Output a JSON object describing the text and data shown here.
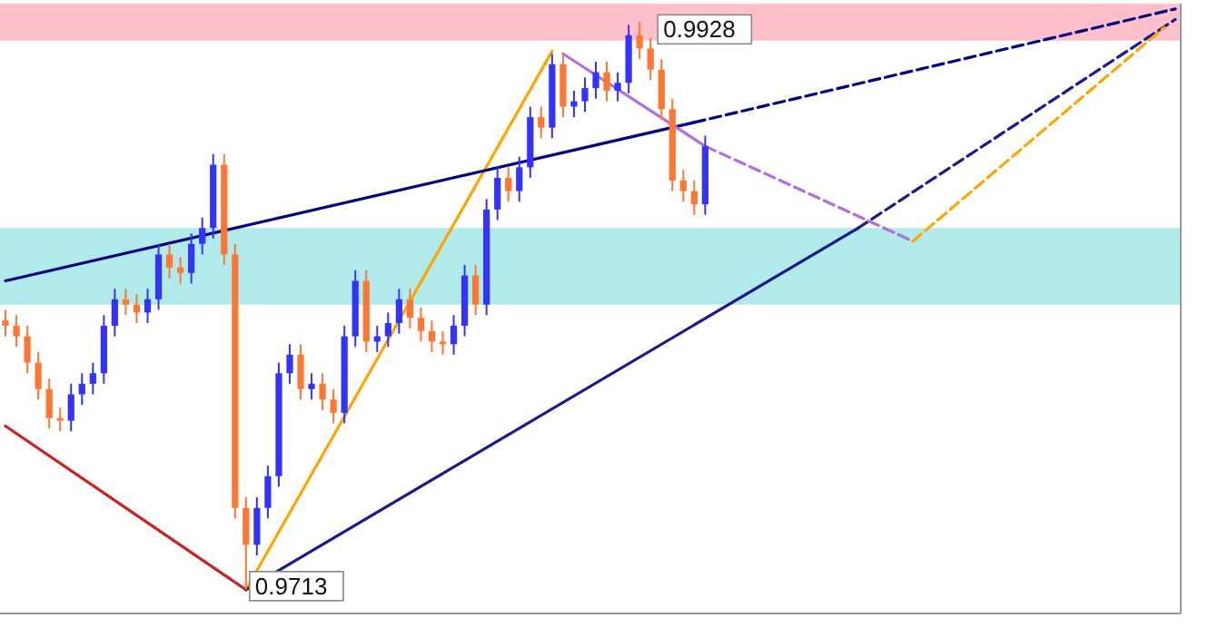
{
  "chart_data": {
    "type": "candlestick",
    "ylim": [
      0.9704,
      0.9935
    ],
    "categories": [
      null,
      null,
      null,
      null,
      null,
      null,
      null,
      null,
      null,
      null,
      null,
      null,
      null,
      null,
      null,
      null,
      null,
      null,
      null,
      null,
      null,
      null,
      null,
      null,
      null,
      null,
      null,
      null,
      null,
      null,
      null,
      null,
      null,
      null,
      null,
      null,
      null,
      null,
      null,
      null,
      null,
      null,
      null,
      null,
      null,
      null,
      null,
      null,
      null,
      null,
      null,
      null,
      null,
      null,
      null,
      null,
      null,
      null,
      null,
      null,
      null,
      null,
      null,
      null,
      null,
      null,
      null,
      null,
      null,
      null,
      null,
      null,
      null,
      null,
      null,
      null,
      null,
      null,
      null,
      null,
      null,
      null,
      null,
      null,
      null,
      null,
      null,
      null,
      null,
      null,
      null,
      null,
      null,
      null,
      null,
      null,
      null,
      null,
      null,
      null,
      null,
      null,
      null,
      null,
      null,
      null,
      null,
      null
    ],
    "ohlc": [
      [
        0.9815,
        0.9819,
        0.9809,
        0.9813
      ],
      [
        0.9813,
        0.9817,
        0.9805,
        0.9809
      ],
      [
        0.9809,
        0.9813,
        0.9795,
        0.9799
      ],
      [
        0.9799,
        0.9803,
        0.9785,
        0.9789
      ],
      [
        0.9789,
        0.9793,
        0.9774,
        0.9778
      ],
      [
        0.9778,
        0.9782,
        0.9773,
        0.9777
      ],
      [
        0.9777,
        0.9791,
        0.9773,
        0.9787
      ],
      [
        0.9787,
        0.9795,
        0.9783,
        0.9791
      ],
      [
        0.9791,
        0.9799,
        0.9787,
        0.9795
      ],
      [
        0.9795,
        0.9817,
        0.9791,
        0.9813
      ],
      [
        0.9813,
        0.9827,
        0.9809,
        0.9823
      ],
      [
        0.9823,
        0.9827,
        0.9817,
        0.9821
      ],
      [
        0.9821,
        0.9825,
        0.9814,
        0.9818
      ],
      [
        0.9818,
        0.9827,
        0.9814,
        0.9823
      ],
      [
        0.9823,
        0.9844,
        0.9819,
        0.984
      ],
      [
        0.984,
        0.9844,
        0.9831,
        0.9835
      ],
      [
        0.9835,
        0.9839,
        0.9829,
        0.9833
      ],
      [
        0.9833,
        0.9848,
        0.9829,
        0.9844
      ],
      [
        0.9844,
        0.9854,
        0.984,
        0.985
      ],
      [
        0.985,
        0.9878,
        0.9846,
        0.9874
      ],
      [
        0.9874,
        0.9878,
        0.9836,
        0.984
      ],
      [
        0.984,
        0.9844,
        0.974,
        0.9744
      ],
      [
        0.9744,
        0.9748,
        0.9713,
        0.973
      ],
      [
        0.973,
        0.9748,
        0.9726,
        0.9744
      ],
      [
        0.9744,
        0.976,
        0.974,
        0.9756
      ],
      [
        0.9756,
        0.9799,
        0.9752,
        0.9795
      ],
      [
        0.9795,
        0.9806,
        0.9791,
        0.9802
      ],
      [
        0.9802,
        0.9806,
        0.9785,
        0.9789
      ],
      [
        0.9789,
        0.9795,
        0.9785,
        0.9791
      ],
      [
        0.9791,
        0.9795,
        0.9781,
        0.9785
      ],
      [
        0.9785,
        0.9789,
        0.9776,
        0.978
      ],
      [
        0.978,
        0.9813,
        0.9776,
        0.9809
      ],
      [
        0.9809,
        0.9834,
        0.9805,
        0.983
      ],
      [
        0.983,
        0.9834,
        0.9803,
        0.9807
      ],
      [
        0.9807,
        0.9813,
        0.9803,
        0.9809
      ],
      [
        0.9809,
        0.9818,
        0.9805,
        0.9814
      ],
      [
        0.9814,
        0.9827,
        0.981,
        0.9823
      ],
      [
        0.9823,
        0.9827,
        0.9812,
        0.9816
      ],
      [
        0.9816,
        0.982,
        0.9807,
        0.9811
      ],
      [
        0.9811,
        0.9815,
        0.9803,
        0.9807
      ],
      [
        0.9807,
        0.9811,
        0.9802,
        0.9806
      ],
      [
        0.9806,
        0.9817,
        0.9802,
        0.9813
      ],
      [
        0.9813,
        0.9836,
        0.9809,
        0.9832
      ],
      [
        0.9832,
        0.9836,
        0.9817,
        0.9821
      ],
      [
        0.9821,
        0.9861,
        0.9817,
        0.9857
      ],
      [
        0.9857,
        0.9873,
        0.9853,
        0.9869
      ],
      [
        0.9869,
        0.9873,
        0.986,
        0.9864
      ],
      [
        0.9864,
        0.9877,
        0.986,
        0.9873
      ],
      [
        0.9873,
        0.9896,
        0.9869,
        0.9892
      ],
      [
        0.9892,
        0.9896,
        0.9884,
        0.9888
      ],
      [
        0.9888,
        0.9916,
        0.9884,
        0.9912
      ],
      [
        0.9912,
        0.9916,
        0.9892,
        0.9896
      ],
      [
        0.9896,
        0.9902,
        0.9892,
        0.9898
      ],
      [
        0.9898,
        0.9907,
        0.9894,
        0.9903
      ],
      [
        0.9903,
        0.9913,
        0.9899,
        0.9909
      ],
      [
        0.9909,
        0.9913,
        0.9898,
        0.9902
      ],
      [
        0.9902,
        0.9909,
        0.9898,
        0.9905
      ],
      [
        0.9905,
        0.9927,
        0.9901,
        0.9923
      ],
      [
        0.9923,
        0.9928,
        0.9914,
        0.9918
      ],
      [
        0.9918,
        0.9922,
        0.9906,
        0.991
      ],
      [
        0.991,
        0.9914,
        0.9891,
        0.9895
      ],
      [
        0.9895,
        0.9899,
        0.9864,
        0.9868
      ],
      [
        0.9868,
        0.9872,
        0.986,
        0.9864
      ],
      [
        0.9864,
        0.9868,
        0.9855,
        0.9859
      ],
      [
        0.9859,
        0.9885,
        0.9855,
        0.9881
      ],
      null,
      null,
      null,
      null,
      null,
      null,
      null,
      null,
      null,
      null,
      null,
      null,
      null,
      null,
      null,
      null,
      null,
      null,
      null,
      null,
      null,
      null,
      null,
      null,
      null,
      null,
      null,
      null,
      null,
      null,
      null,
      null,
      null,
      null,
      null,
      null,
      null,
      null,
      null,
      null,
      null,
      null,
      null
    ],
    "colors": [
      "#ff7733",
      "#ff7733",
      "#ff7733",
      "#ff7733",
      "#ff7733",
      "#ff7733",
      "#3333ff",
      "#3333ff",
      "#3333ff",
      "#3333ff",
      "#3333ff",
      "#ff7733",
      "#ff7733",
      "#3333ff",
      "#3333ff",
      "#ff7733",
      "#ff7733",
      "#3333ff",
      "#3333ff",
      "#3333ff",
      "#ff7733",
      "#ff7733",
      "#ff7733",
      "#3333ff",
      "#3333ff",
      "#3333ff",
      "#3333ff",
      "#ff7733",
      "#3333ff",
      "#ff7733",
      "#ff7733",
      "#3333ff",
      "#3333ff",
      "#ff7733",
      "#3333ff",
      "#3333ff",
      "#3333ff",
      "#ff7733",
      "#ff7733",
      "#ff7733",
      "#ff7733",
      "#3333ff",
      "#3333ff",
      "#ff7733",
      "#3333ff",
      "#3333ff",
      "#ff7733",
      "#3333ff",
      "#3333ff",
      "#ff7733",
      "#3333ff",
      "#ff7733",
      "#3333ff",
      "#3333ff",
      "#3333ff",
      "#ff7733",
      "#3333ff",
      "#3333ff",
      "#ff7733",
      "#ff7733",
      "#ff7733",
      "#ff7733",
      "#ff7733",
      "#ff7733",
      "#3333ff",
      null,
      null,
      null,
      null,
      null,
      null,
      null,
      null,
      null,
      null,
      null,
      null,
      null,
      null,
      null,
      null,
      null,
      null,
      null,
      null,
      null,
      null,
      null,
      null,
      null,
      null,
      null,
      null,
      null,
      null,
      null,
      null,
      null,
      null,
      null,
      null,
      null,
      null,
      null,
      null,
      null,
      null,
      null
    ],
    "series": [
      {
        "type": "line",
        "color": "#cc2222",
        "line_style": "solid",
        "values": [
          0.9775,
          null,
          null,
          null,
          null,
          null,
          null,
          null,
          null,
          null,
          null,
          null,
          null,
          null,
          null,
          null,
          null,
          null,
          null,
          null,
          null,
          null,
          0.9713,
          null,
          null,
          null,
          null,
          null,
          null,
          null,
          null,
          null,
          null,
          null,
          null,
          null,
          null,
          null,
          null,
          null,
          null,
          null,
          null,
          null,
          null,
          null,
          null,
          null,
          null,
          null,
          null,
          null,
          null,
          null,
          null,
          null,
          null,
          null,
          null,
          null,
          null,
          null,
          null,
          null,
          null,
          null,
          null,
          null,
          null,
          null,
          null,
          null,
          null,
          null,
          null,
          null,
          null,
          null,
          null,
          null,
          null,
          null,
          null,
          null,
          null,
          null,
          null,
          null,
          null,
          null,
          null,
          null,
          null,
          null,
          null,
          null,
          null,
          null,
          null,
          null,
          null,
          null,
          null,
          null,
          null,
          null,
          null,
          null
        ]
      },
      {
        "type": "line",
        "color": "#ffa500",
        "line_style": "solid",
        "values": [
          null,
          null,
          null,
          null,
          null,
          null,
          null,
          null,
          null,
          null,
          null,
          null,
          null,
          null,
          null,
          null,
          null,
          null,
          null,
          null,
          null,
          null,
          0.9713,
          null,
          null,
          null,
          null,
          null,
          null,
          null,
          null,
          null,
          null,
          null,
          null,
          null,
          null,
          null,
          null,
          null,
          null,
          null,
          null,
          null,
          null,
          null,
          null,
          null,
          null,
          null,
          0.9917,
          null,
          null,
          null,
          null,
          null,
          null,
          null,
          null,
          null,
          null,
          null,
          null,
          null,
          null,
          null,
          null,
          null,
          null,
          null,
          null,
          null,
          null,
          null,
          null,
          null,
          null,
          null,
          null,
          null,
          null,
          null,
          null,
          null,
          null,
          null,
          null,
          null,
          null,
          null,
          null,
          null,
          null,
          null,
          null,
          null,
          null,
          null,
          null,
          null,
          null,
          null,
          null,
          null,
          null,
          null,
          null,
          null
        ]
      },
      {
        "type": "line",
        "color": "#000080",
        "line_style": "solid",
        "values": [
          0.983,
          null,
          null,
          null,
          null,
          null,
          null,
          null,
          null,
          null,
          null,
          null,
          null,
          null,
          null,
          null,
          null,
          null,
          null,
          null,
          null,
          null,
          null,
          null,
          null,
          null,
          null,
          null,
          null,
          null,
          null,
          null,
          null,
          null,
          null,
          null,
          null,
          null,
          null,
          null,
          null,
          null,
          null,
          null,
          null,
          null,
          null,
          null,
          null,
          null,
          null,
          null,
          null,
          null,
          null,
          null,
          null,
          null,
          null,
          null,
          null,
          null,
          null,
          0.989,
          null,
          null,
          null,
          null,
          null,
          null,
          null,
          null,
          null,
          null,
          null,
          null,
          null,
          null,
          null,
          null,
          null,
          null,
          null,
          null,
          null,
          null,
          null,
          null,
          null,
          null,
          null,
          null,
          null,
          null,
          null,
          null,
          null,
          null,
          null,
          null,
          null,
          null,
          null,
          null,
          null,
          null,
          null,
          null
        ]
      },
      {
        "type": "line",
        "color": "#000080",
        "line_style": "dashed",
        "values": [
          null,
          null,
          null,
          null,
          null,
          null,
          null,
          null,
          null,
          null,
          null,
          null,
          null,
          null,
          null,
          null,
          null,
          null,
          null,
          null,
          null,
          null,
          null,
          null,
          null,
          null,
          null,
          null,
          null,
          null,
          null,
          null,
          null,
          null,
          null,
          null,
          null,
          null,
          null,
          null,
          null,
          null,
          null,
          null,
          null,
          null,
          null,
          null,
          null,
          null,
          null,
          null,
          null,
          null,
          null,
          null,
          null,
          null,
          null,
          null,
          null,
          null,
          null,
          0.989,
          null,
          null,
          null,
          null,
          null,
          null,
          null,
          null,
          null,
          null,
          null,
          null,
          null,
          null,
          null,
          null,
          null,
          null,
          null,
          null,
          null,
          null,
          null,
          null,
          null,
          null,
          null,
          null,
          null,
          null,
          null,
          null,
          null,
          null,
          null,
          null,
          null,
          null,
          null,
          null,
          null,
          null,
          null,
          0.9933
        ]
      },
      {
        "type": "line",
        "color": "#1a1a8c",
        "line_style": "solid",
        "values": [
          null,
          null,
          null,
          null,
          null,
          null,
          null,
          null,
          null,
          null,
          null,
          null,
          null,
          null,
          null,
          null,
          null,
          null,
          null,
          null,
          null,
          null,
          0.9713,
          null,
          null,
          null,
          null,
          null,
          null,
          null,
          null,
          null,
          null,
          null,
          null,
          null,
          null,
          null,
          null,
          null,
          null,
          null,
          null,
          null,
          null,
          null,
          null,
          null,
          null,
          null,
          null,
          null,
          null,
          null,
          null,
          null,
          null,
          null,
          null,
          null,
          null,
          null,
          null,
          null,
          null,
          null,
          null,
          null,
          null,
          null,
          null,
          null,
          null,
          null,
          null,
          null,
          null,
          null,
          0.985,
          null,
          null,
          null,
          null,
          null,
          null,
          null,
          null,
          null,
          null,
          null,
          null,
          null,
          null,
          null,
          null,
          null,
          null,
          null,
          null,
          null,
          null,
          null,
          null,
          null,
          null,
          null,
          null,
          null
        ]
      },
      {
        "type": "line",
        "color": "#1a1a8c",
        "line_style": "dashed",
        "values": [
          null,
          null,
          null,
          null,
          null,
          null,
          null,
          null,
          null,
          null,
          null,
          null,
          null,
          null,
          null,
          null,
          null,
          null,
          null,
          null,
          null,
          null,
          null,
          null,
          null,
          null,
          null,
          null,
          null,
          null,
          null,
          null,
          null,
          null,
          null,
          null,
          null,
          null,
          null,
          null,
          null,
          null,
          null,
          null,
          null,
          null,
          null,
          null,
          null,
          null,
          null,
          null,
          null,
          null,
          null,
          null,
          null,
          null,
          null,
          null,
          null,
          null,
          null,
          null,
          null,
          null,
          null,
          null,
          null,
          null,
          null,
          null,
          null,
          null,
          null,
          null,
          null,
          null,
          0.985,
          null,
          null,
          null,
          null,
          null,
          null,
          null,
          null,
          null,
          null,
          null,
          null,
          null,
          null,
          null,
          null,
          null,
          null,
          null,
          null,
          null,
          null,
          null,
          null,
          null,
          null,
          null,
          null,
          0.9929
        ]
      },
      {
        "type": "line",
        "color": "#b070e0",
        "line_style": "solid",
        "values": [
          null,
          null,
          null,
          null,
          null,
          null,
          null,
          null,
          null,
          null,
          null,
          null,
          null,
          null,
          null,
          null,
          null,
          null,
          null,
          null,
          null,
          null,
          null,
          null,
          null,
          null,
          null,
          null,
          null,
          null,
          null,
          null,
          null,
          null,
          null,
          null,
          null,
          null,
          null,
          null,
          null,
          null,
          null,
          null,
          null,
          null,
          null,
          null,
          null,
          null,
          null,
          0.9916,
          null,
          null,
          null,
          null,
          null,
          null,
          null,
          null,
          null,
          null,
          null,
          null,
          0.9881,
          null,
          null,
          null,
          null,
          null,
          null,
          null,
          null,
          null,
          null,
          null,
          null,
          null,
          null,
          null,
          null,
          null,
          null,
          null,
          null,
          null,
          null,
          null,
          null,
          null,
          null,
          null,
          null,
          null,
          null,
          null,
          null,
          null,
          null,
          null,
          null,
          null,
          null,
          null,
          null,
          null,
          null,
          null
        ]
      },
      {
        "type": "line",
        "color": "#b070e0",
        "line_style": "dashed",
        "values": [
          null,
          null,
          null,
          null,
          null,
          null,
          null,
          null,
          null,
          null,
          null,
          null,
          null,
          null,
          null,
          null,
          null,
          null,
          null,
          null,
          null,
          null,
          null,
          null,
          null,
          null,
          null,
          null,
          null,
          null,
          null,
          null,
          null,
          null,
          null,
          null,
          null,
          null,
          null,
          null,
          null,
          null,
          null,
          null,
          null,
          null,
          null,
          null,
          null,
          null,
          null,
          null,
          null,
          null,
          null,
          null,
          null,
          null,
          null,
          null,
          null,
          null,
          null,
          null,
          0.9881,
          null,
          null,
          null,
          null,
          null,
          null,
          null,
          null,
          null,
          null,
          null,
          null,
          null,
          null,
          null,
          null,
          null,
          null,
          0.9845,
          null,
          null,
          null,
          null,
          null,
          null,
          null,
          null,
          null,
          null,
          null,
          null,
          null,
          null,
          null,
          null,
          null,
          null,
          null,
          null,
          null,
          null,
          null,
          null
        ]
      },
      {
        "type": "line",
        "color": "#ffa500",
        "line_style": "dashed",
        "values": [
          null,
          null,
          null,
          null,
          null,
          null,
          null,
          null,
          null,
          null,
          null,
          null,
          null,
          null,
          null,
          null,
          null,
          null,
          null,
          null,
          null,
          null,
          null,
          null,
          null,
          null,
          null,
          null,
          null,
          null,
          null,
          null,
          null,
          null,
          null,
          null,
          null,
          null,
          null,
          null,
          null,
          null,
          null,
          null,
          null,
          null,
          null,
          null,
          null,
          null,
          null,
          null,
          null,
          null,
          null,
          null,
          null,
          null,
          null,
          null,
          null,
          null,
          null,
          null,
          null,
          null,
          null,
          null,
          null,
          null,
          null,
          null,
          null,
          null,
          null,
          null,
          null,
          null,
          null,
          null,
          null,
          null,
          null,
          0.9845,
          null,
          null,
          null,
          null,
          null,
          null,
          null,
          null,
          null,
          null,
          null,
          null,
          null,
          null,
          null,
          null,
          null,
          null,
          null,
          null,
          null,
          null,
          0.9926,
          null
        ]
      }
    ],
    "bands": [
      {
        "axis": "y",
        "from": 0.9921,
        "to": 0.9935,
        "color": "#ffc0cb"
      },
      {
        "axis": "y",
        "from": 0.9821,
        "to": 0.985,
        "color": "#b0eaea"
      }
    ],
    "annotations": [
      "0.9928",
      "0.9713"
    ]
  }
}
